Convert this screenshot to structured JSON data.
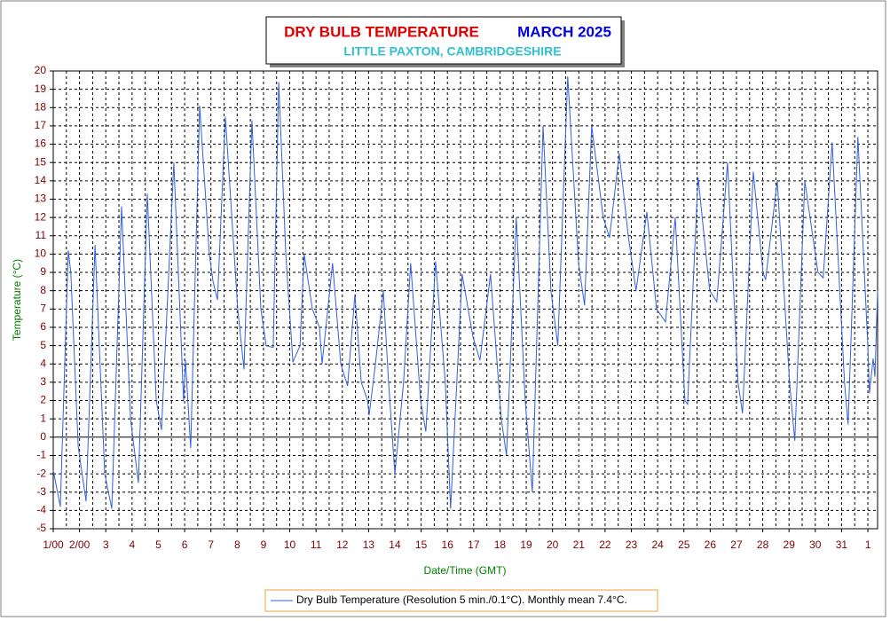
{
  "chart_data": {
    "type": "line",
    "title": "DRY BULB TEMPERATURE",
    "title_color": "#e00000",
    "title_date": "MARCH 2025",
    "title_date_color": "#0000e0",
    "subtitle": "LITTLE PAXTON, CAMBRIDGESHIRE",
    "subtitle_color": "#30c0d0",
    "x_label": "Date/Time (GMT)",
    "y_label": "Temperature (°C)",
    "axis_label_color": "#008000",
    "xlim": [
      1,
      32.37
    ],
    "ylim": [
      -5,
      20
    ],
    "xticks": [
      {
        "value": 1,
        "label": "1/00"
      },
      {
        "value": 2,
        "label": "2/00"
      },
      3,
      4,
      5,
      6,
      7,
      8,
      9,
      10,
      11,
      12,
      13,
      14,
      15,
      16,
      17,
      18,
      19,
      20,
      21,
      22,
      23,
      24,
      25,
      26,
      27,
      28,
      29,
      30,
      31,
      {
        "value": 32,
        "label": "1"
      }
    ],
    "xgrid_minor": [
      1.5,
      2.5,
      3.5,
      4.5,
      5.5,
      6.5,
      7.5,
      8.5,
      9.5,
      10.5,
      11.5,
      12.5,
      13.5,
      14.5,
      15.5,
      16.5,
      17.5,
      18.5,
      19.5,
      20.5,
      21.5,
      22.5,
      23.5,
      24.5,
      25.5,
      26.5,
      27.5,
      28.5,
      29.5,
      30.5,
      31.5
    ],
    "yticks": [
      -5,
      -4,
      -3,
      -2,
      -1,
      0,
      1,
      2,
      3,
      4,
      5,
      6,
      7,
      8,
      9,
      10,
      11,
      12,
      13,
      14,
      15,
      16,
      17,
      18,
      19,
      20
    ],
    "grid": true,
    "legend": "bottom",
    "series": [
      {
        "name": "Dry Bulb Temperature (Resolution 5 min./0.1°C). Monthly mean 7.4°C.",
        "color": "#3060e0",
        "x": [
          1.0,
          1.27,
          1.57,
          1.67,
          1.95,
          2.25,
          2.59,
          2.96,
          3.23,
          3.6,
          3.94,
          4.24,
          4.58,
          4.92,
          5.12,
          5.59,
          5.96,
          6.03,
          6.23,
          6.57,
          6.94,
          7.08,
          7.25,
          7.55,
          8.02,
          8.26,
          8.56,
          8.9,
          9.1,
          9.37,
          9.58,
          9.85,
          10.12,
          10.39,
          10.55,
          10.86,
          11.13,
          11.23,
          11.63,
          11.94,
          12.2,
          12.48,
          12.72,
          12.96,
          13.02,
          13.26,
          13.56,
          13.76,
          14.0,
          14.33,
          14.6,
          14.98,
          15.18,
          15.55,
          15.92,
          16.12,
          16.56,
          16.97,
          17.24,
          17.64,
          18.05,
          18.25,
          18.62,
          18.96,
          19.23,
          19.64,
          19.94,
          20.2,
          20.58,
          20.99,
          21.22,
          21.49,
          21.93,
          22.17,
          22.54,
          22.88,
          23.18,
          23.59,
          23.96,
          24.3,
          24.67,
          25.04,
          25.14,
          25.54,
          25.98,
          26.25,
          26.66,
          27.06,
          27.23,
          27.64,
          28.01,
          28.11,
          28.55,
          29.02,
          29.22,
          29.6,
          30.1,
          30.3,
          30.64,
          31.11,
          31.25,
          31.62,
          32.0,
          32.06,
          32.2,
          32.27,
          32.37
        ],
        "values": [
          -1.8,
          -3.8,
          10.2,
          9,
          -0.5,
          -3.5,
          10.5,
          -2,
          -3.9,
          12.6,
          1,
          -2.5,
          13.3,
          2,
          0.4,
          15,
          2,
          4.2,
          -0.6,
          18.1,
          10,
          8.5,
          7.5,
          17.5,
          7,
          3.7,
          17.3,
          7,
          5,
          4.9,
          19.4,
          10,
          4.1,
          5,
          10,
          7,
          6,
          4,
          9.5,
          4,
          2.8,
          7.8,
          3,
          2,
          1.2,
          4,
          8,
          3,
          -2,
          3,
          9.5,
          2,
          0.3,
          9.6,
          3,
          -3.9,
          8.9,
          5.5,
          4.2,
          8.9,
          1,
          -1,
          12,
          2,
          -3,
          17,
          8,
          5,
          19.7,
          9.5,
          7.2,
          17,
          12,
          10.9,
          15.5,
          11,
          8,
          12.3,
          7,
          6.3,
          12,
          2,
          1.8,
          14.2,
          8,
          7.4,
          15,
          3,
          1.3,
          14.5,
          9,
          8.6,
          14,
          3,
          -0.2,
          14,
          9,
          8.7,
          16.1,
          3,
          0.7,
          16.4,
          5,
          2.4,
          4.3,
          3.3,
          8
        ]
      }
    ]
  }
}
